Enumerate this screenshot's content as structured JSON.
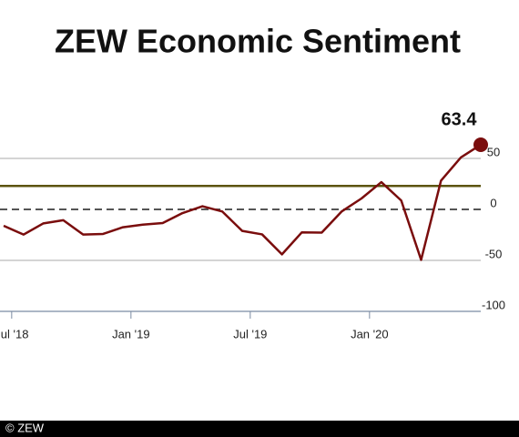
{
  "chart_data": {
    "type": "line",
    "title": "ZEW Economic Sentiment",
    "categories": [
      null,
      "Jul '18",
      null,
      null,
      null,
      null,
      null,
      "Jan '19",
      null,
      null,
      null,
      null,
      null,
      "Jul '19",
      null,
      null,
      null,
      null,
      null,
      "Jan '20",
      null,
      null,
      null,
      null,
      null
    ],
    "series": [
      {
        "name": "ZEW Economic Sentiment",
        "color": "#7a0d0d",
        "values": [
          -16.1,
          -24.7,
          -13.7,
          -10.6,
          -24.7,
          -24.1,
          -17.5,
          -15.0,
          -13.4,
          -3.6,
          3.1,
          -2.1,
          -21.1,
          -24.5,
          -44.1,
          -22.5,
          -22.8,
          -2.1,
          10.7,
          26.7,
          8.7,
          -49.5,
          28.2,
          51.0,
          63.4
        ]
      }
    ],
    "ylim": [
      -100,
      100
    ],
    "yticks": [
      50,
      0,
      -50,
      -100
    ],
    "reference_line": {
      "value": 23,
      "color": "#5c5410"
    },
    "grid": true,
    "footer": "© ZEW"
  }
}
